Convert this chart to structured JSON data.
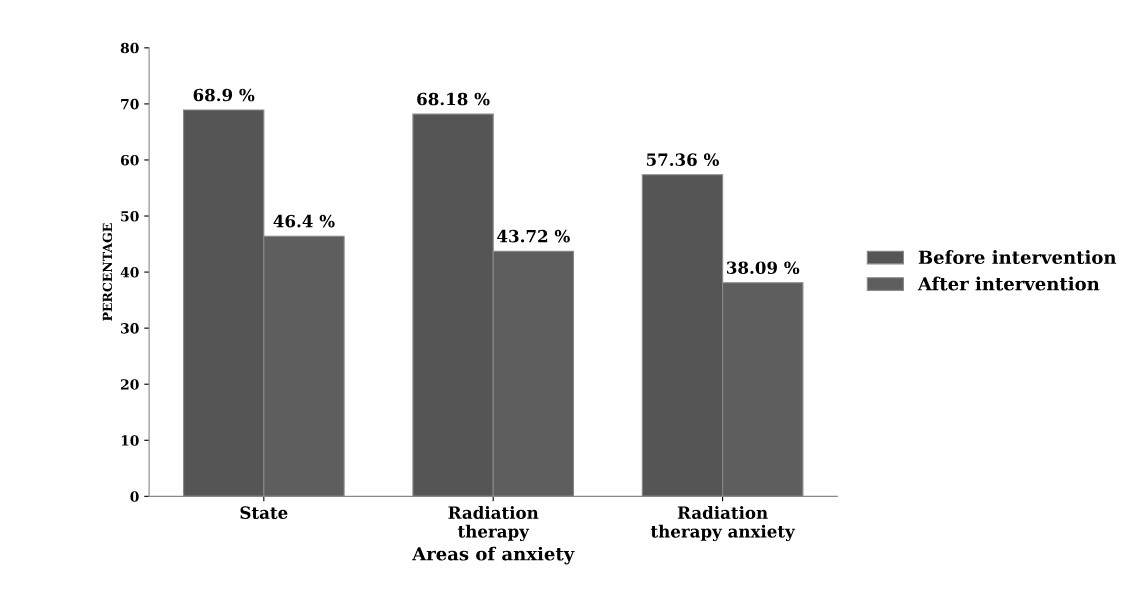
{
  "chart_data": {
    "type": "bar",
    "xlabel": "Areas of anxiety",
    "ylabel": "PERCENTAGE",
    "categories": [
      "State",
      "Radiation\ntherapy",
      "Radiation\ntherapy anxiety"
    ],
    "series": [
      {
        "name": "Before intervention",
        "color": "#555555",
        "values": [
          68.9,
          68.18,
          57.36
        ],
        "value_labels": [
          "68.9 %",
          "68.18 %",
          "57.36 %"
        ]
      },
      {
        "name": "After intervention",
        "color": "#5e5e5e",
        "values": [
          46.4,
          43.72,
          38.09
        ],
        "value_labels": [
          "46.4 %",
          "43.72 %",
          "38.09 %"
        ]
      }
    ],
    "ylim": [
      0,
      80
    ],
    "yticks": [
      0,
      10,
      20,
      30,
      40,
      50,
      60,
      70,
      80
    ],
    "grid": false,
    "legend": "right"
  }
}
